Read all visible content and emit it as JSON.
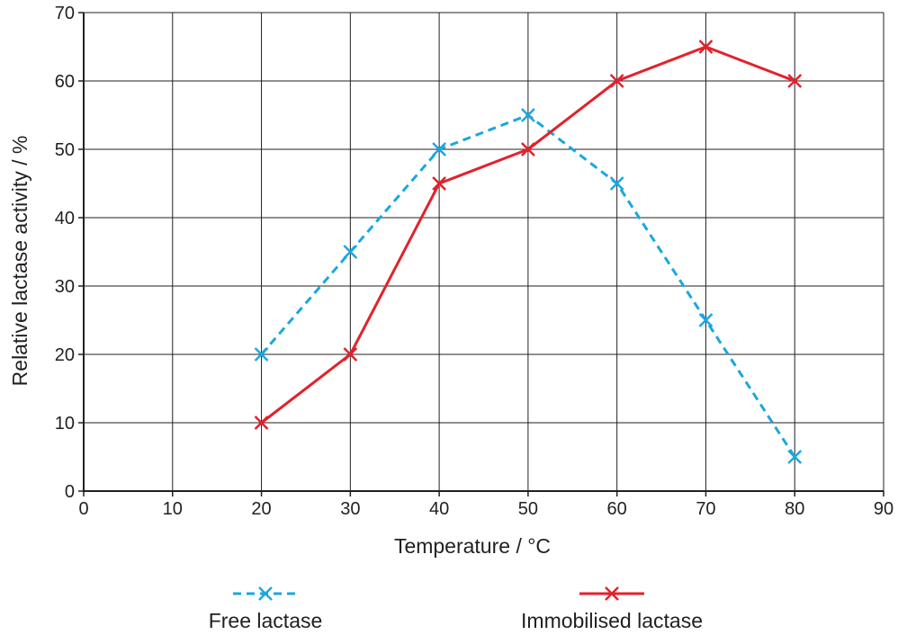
{
  "chart_data": {
    "type": "line",
    "title": "",
    "xlabel": "Temperature / °C",
    "ylabel": "Relative lactase activity / %",
    "xlim": [
      0,
      90
    ],
    "ylim": [
      0,
      70
    ],
    "x_ticks": [
      "0",
      "10",
      "20",
      "30",
      "40",
      "50",
      "60",
      "70",
      "80",
      "90"
    ],
    "y_ticks": [
      "0",
      "10",
      "20",
      "30",
      "40",
      "50",
      "60",
      "70"
    ],
    "grid": true,
    "legend_position": "bottom",
    "series": [
      {
        "name": "Free lactase",
        "color": "#1aa7e0",
        "line_style": "dashed",
        "marker": "x",
        "x": [
          20,
          30,
          40,
          50,
          60,
          70,
          80
        ],
        "y": [
          20,
          35,
          50,
          55,
          45,
          25,
          5
        ]
      },
      {
        "name": "Immobilised lactase",
        "color": "#e3212b",
        "line_style": "solid",
        "marker": "x",
        "x": [
          20,
          30,
          40,
          50,
          60,
          70,
          80
        ],
        "y": [
          10,
          20,
          45,
          50,
          60,
          65,
          60
        ]
      }
    ]
  }
}
